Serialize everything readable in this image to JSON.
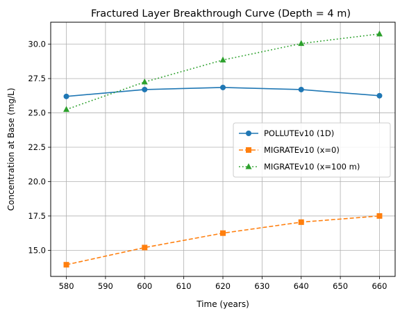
{
  "chart_data": {
    "type": "line",
    "title": "Fractured Layer Breakthrough Curve (Depth = 4 m)",
    "xlabel": "Time (years)",
    "ylabel": "Concentration at Base (mg/L)",
    "x": [
      580,
      600,
      620,
      640,
      660
    ],
    "xlim": [
      576,
      664
    ],
    "ylim": [
      13.1,
      31.6
    ],
    "xticks": [
      580,
      590,
      600,
      610,
      620,
      630,
      640,
      650,
      660
    ],
    "yticks": [
      15.0,
      17.5,
      20.0,
      22.5,
      25.0,
      27.5,
      30.0
    ],
    "ytick_labels": [
      "15.0",
      "17.5",
      "20.0",
      "22.5",
      "25.0",
      "27.5",
      "30.0"
    ],
    "grid": true,
    "legend_position": "center-right",
    "series": [
      {
        "name": "POLLUTEv10 (1D)",
        "values": [
          26.2,
          26.7,
          26.85,
          26.7,
          26.25
        ],
        "color": "#1f77b4",
        "dash": "solid",
        "marker": "circle"
      },
      {
        "name": "MIGRATEv10 (x=0)",
        "values": [
          13.95,
          15.2,
          16.25,
          17.05,
          17.5
        ],
        "color": "#ff7f0e",
        "dash": "dashed",
        "marker": "square"
      },
      {
        "name": "MIGRATEv10 (x=100 m)",
        "values": [
          25.25,
          27.25,
          28.85,
          30.05,
          30.75
        ],
        "color": "#2ca02c",
        "dash": "dotted",
        "marker": "triangle"
      }
    ]
  }
}
